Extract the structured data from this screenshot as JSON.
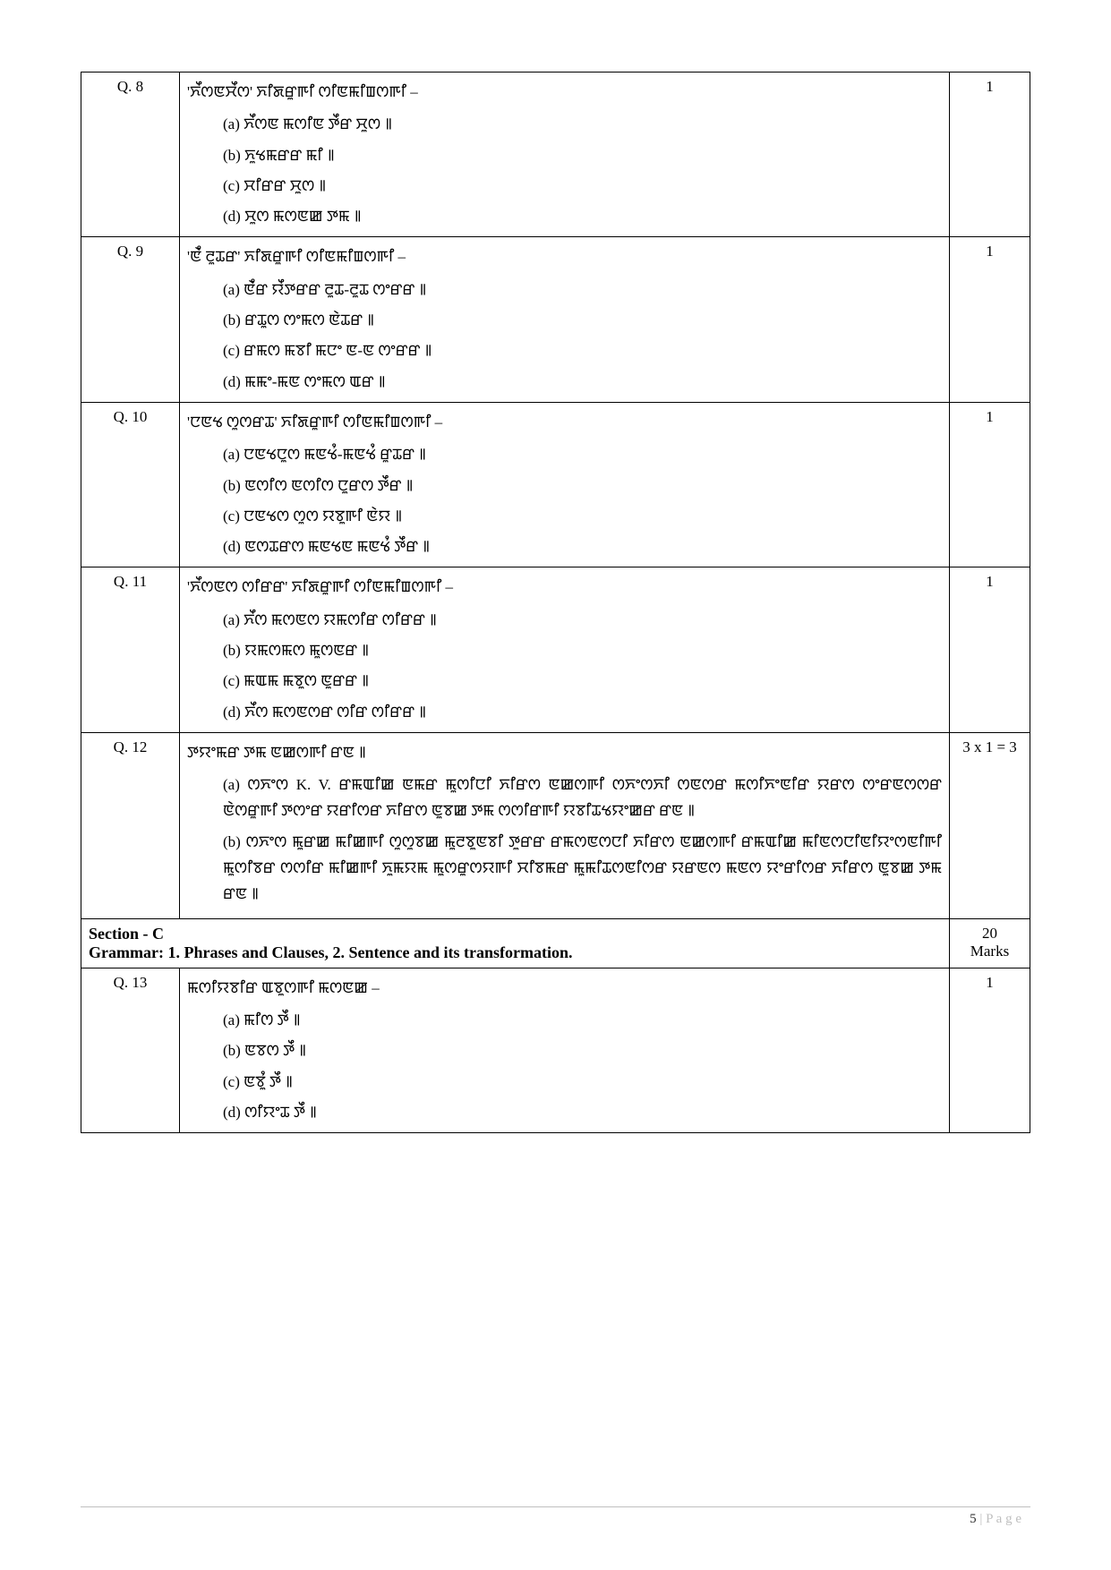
{
  "questions": [
    {
      "no": "Q. 8",
      "marks": "1",
      "stem": "'ꯈꯩꯁꯟꯆꯩꯁ' ꯈꯤꯗꯔꯨꯒꯤ ꯁꯤꯟꯃꯤꯡꯁꯒꯤ –",
      "options": [
        "(a)  ꯈꯩꯁꯟ ꯃꯁꯤꯟ ꯇꯩꯔ ꯆꯨꯁ ꯫",
        "(b)  ꯈꯨꯠꯃꯔꯔ ꯃꯤ ꯫",
        "(c)  ꯆꯤꯔꯔ ꯆꯨꯁ ꯫",
        "(d)  ꯆꯨꯁ ꯃꯁꯟꯀ ꯇꯃ ꯫"
      ]
    },
    {
      "no": "Q. 9",
      "marks": "1",
      "stem": "'ꯟꯥꯪ ꯂꯨꯊꯔ' ꯈꯤꯗꯔꯨꯒꯤ ꯁꯤꯟꯃꯤꯡꯁꯒꯤ –",
      "options": [
        "(a)  ꯟꯥꯪꯔ ꯌꯩꯇꯔꯔ ꯂꯨꯊ-ꯂꯨꯊ ꯁꯦꯔꯔ ꯫",
        "(b)  ꯔꯊꯨꯁ ꯁꯦꯃꯁ ꯟꯥꯊꯔ ꯫",
        "(c)  ꯔꯃꯁ ꯃꯕꯤ ꯃꯅꯦ ꯟ-ꯟ ꯁꯦꯔꯔ ꯫",
        "(d)  ꯃꯃꯦ-ꯃꯟ ꯁꯦꯃꯁ ꯑꯔ ꯫"
      ]
    },
    {
      "no": "Q. 10",
      "marks": "1",
      "stem": "'ꯅꯟꯠ ꯁꯨꯁꯔꯊ' ꯈꯤꯗꯔꯨꯒꯤ ꯁꯤꯟꯃꯤꯡꯁꯒꯤ –",
      "options": [
        "(a)  ꯅꯟꯠꯅꯨꯁ ꯃꯟꯠꯪ-ꯃꯟꯠꯪ ꯔꯨꯊꯔ ꯫",
        "(b)  ꯟꯁꯤꯁ ꯟꯁꯤꯁ ꯅꯨꯔꯁ ꯇꯩꯔ ꯫",
        "(c)  ꯅꯟꯠꯁ ꯁꯨꯁ ꯌꯕꯨꯒꯤ ꯟꯥꯌ ꯫",
        "(d)  ꯟꯁꯊꯔꯁ ꯃꯟꯠꯟ ꯃꯟꯠꯪ ꯇꯩꯔ ꯫"
      ]
    },
    {
      "no": "Q. 11",
      "marks": "1",
      "stem": "'ꯈꯩꯁꯟꯁ ꯁꯤꯔꯔ' ꯈꯤꯗꯔꯨꯒꯤ ꯁꯤꯟꯃꯤꯡꯁꯒꯤ –",
      "options": [
        "(a)  ꯈꯩꯁ ꯃꯁꯟꯁ ꯌꯃꯁꯤꯔ ꯁꯤꯔꯔ ꯫",
        "(b)  ꯌꯃꯁꯃꯁ ꯃꯨꯁꯟꯔ ꯫",
        "(c)  ꯃꯑꯃ ꯃꯕꯨꯁ ꯟꯨꯔꯔ ꯫",
        "(d)  ꯈꯩꯁ ꯃꯁꯟꯁꯔ ꯁꯤꯔ ꯁꯤꯔꯔ ꯫"
      ]
    },
    {
      "no": "Q. 12",
      "marks": "3 x 1 = 3",
      "stem": "ꯇꯌꯦꯃꯔ ꯇꯃ ꯟꯀꯁꯒꯤ ꯔꯟ ꯫",
      "paragraphs": [
        "(a)  ꯁꯈꯦꯁ K. V. ꯔꯃꯑꯤꯀ ꯟꯃꯔ ꯃꯨꯁꯤꯅꯤ ꯈꯤꯔꯁ ꯟꯀꯁꯒꯤ ꯁꯈꯦꯁꯈꯤ ꯁꯟꯁꯔ ꯃꯁꯤꯈꯦꯟꯤꯔ ꯌꯔꯁ ꯁꯦꯔꯟꯁꯁꯔ ꯟꯥꯁꯔꯨꯒꯤ ꯇꯁꯦꯔ ꯌꯔꯤꯁꯔ ꯈꯤꯔꯁ ꯟꯨꯕꯀ ꯇꯃ ꯁꯁꯤꯔꯒꯤ ꯌꯕꯤꯊꯠꯌꯦꯀꯔ ꯔꯟ ꯫",
        "(b)  ꯁꯈꯦꯁ ꯃꯨꯔꯀ ꯃꯤꯀꯒꯤ ꯁꯨꯁꯨꯕꯀ ꯃꯨꯂꯕꯨꯟꯕꯤ ꯇꯨꯔꯔ ꯔꯃꯁꯟꯁꯅꯤ ꯈꯤꯔꯁ ꯟꯀꯁꯒꯤ ꯔꯃꯑꯤꯀ ꯃꯤꯟꯁꯅꯤꯟꯤꯌꯦꯁꯟꯤꯒꯤ ꯃꯨꯁꯤꯕꯔ ꯁꯁꯤꯔ ꯃꯤꯀꯒꯤ ꯈꯨꯃꯌꯃ ꯃꯨꯁꯔꯨꯁꯌꯒꯤ ꯆꯤꯕꯃꯔ ꯃꯨꯃꯤꯊꯁꯟꯤꯁꯔ ꯌꯔꯟꯁ ꯃꯟꯁ ꯌꯦꯔꯤꯁꯔ ꯈꯤꯔꯁ ꯟꯨꯕꯀ ꯇꯃ ꯔꯟ ꯫"
      ]
    }
  ],
  "section": {
    "title": "Section - C",
    "sub": "Grammar: 1. Phrases and Clauses, 2. Sentence and its transformation.",
    "marks_line1": "20",
    "marks_line2": "Marks"
  },
  "q13": {
    "no": "Q. 13",
    "marks": "1",
    "stem": "ꯃꯁꯤꯌꯕꯤꯔ ꯑꯕꯨꯁꯒꯤ ꯃꯁꯟꯀ –",
    "options": [
      "(a)  ꯃꯤꯁ ꯇꯩ ꯫",
      "(b)  ꯟꯕꯁ ꯇꯩ ꯫",
      "(c)  ꯟꯕꯨꯪ ꯇꯩ ꯫",
      "(d)  ꯁꯤꯌꯦꯊ ꯇꯩ ꯫"
    ]
  },
  "footer": {
    "page_no": "5",
    "sep": " | ",
    "label": "P a g e"
  }
}
